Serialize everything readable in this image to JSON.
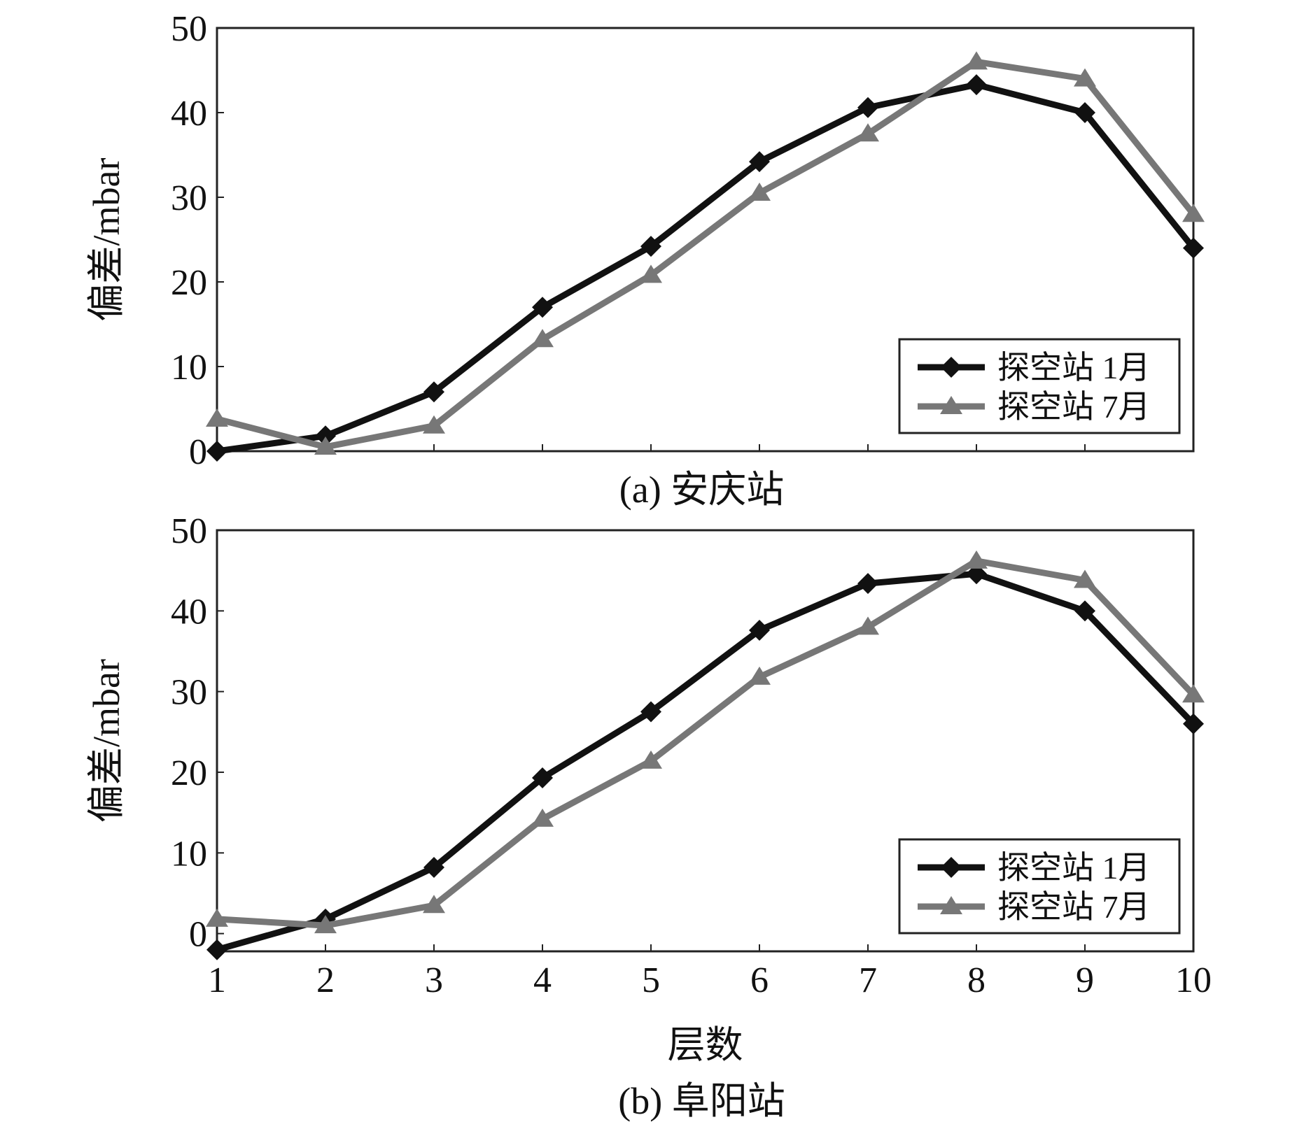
{
  "figure": {
    "x_axis_label": "层数"
  },
  "chart_data": [
    {
      "type": "line",
      "caption": "(a) 安庆站",
      "ylabel": "偏差/mbar",
      "xlabel": "",
      "x": [
        1,
        2,
        3,
        4,
        5,
        6,
        7,
        8,
        9,
        10
      ],
      "xlim": [
        1,
        10
      ],
      "ylim": [
        0,
        50
      ],
      "yticks": [
        0,
        10,
        20,
        30,
        40,
        50
      ],
      "xticks_shown": false,
      "legend_position": "bottom-right",
      "series": [
        {
          "name": "探空站 1月",
          "label_text": "探空站 1月",
          "marker": "diamond",
          "color": "#111111",
          "values": [
            0,
            1.8,
            7,
            17,
            24.2,
            34.2,
            40.6,
            43.3,
            40,
            24
          ]
        },
        {
          "name": "探空站 7月",
          "label_text": "探空站 7月",
          "marker": "triangle",
          "color": "#777777",
          "values": [
            3.8,
            0.5,
            3,
            13.2,
            20.8,
            30.5,
            37.5,
            46,
            44,
            28
          ]
        }
      ]
    },
    {
      "type": "line",
      "caption": "(b) 阜阳站",
      "ylabel": "偏差/mbar",
      "xlabel": "层数",
      "x": [
        1,
        2,
        3,
        4,
        5,
        6,
        7,
        8,
        9,
        10
      ],
      "xlim": [
        1,
        10
      ],
      "ylim": [
        -2.2,
        50
      ],
      "yticks": [
        0,
        10,
        20,
        30,
        40,
        50
      ],
      "xticks": [
        1,
        2,
        3,
        4,
        5,
        6,
        7,
        8,
        9,
        10
      ],
      "xticks_shown": true,
      "legend_position": "bottom-right",
      "series": [
        {
          "name": "探空站 1月",
          "label_text": "探空站 1月",
          "marker": "diamond",
          "color": "#111111",
          "values": [
            -2,
            1.8,
            8.2,
            19.3,
            27.5,
            37.6,
            43.4,
            44.6,
            40,
            26
          ]
        },
        {
          "name": "探空站 7月",
          "label_text": "探空站 7月",
          "marker": "triangle",
          "color": "#777777",
          "values": [
            1.8,
            1,
            3.5,
            14.2,
            21.4,
            31.8,
            38,
            46.2,
            43.8,
            29.6
          ]
        }
      ]
    }
  ]
}
